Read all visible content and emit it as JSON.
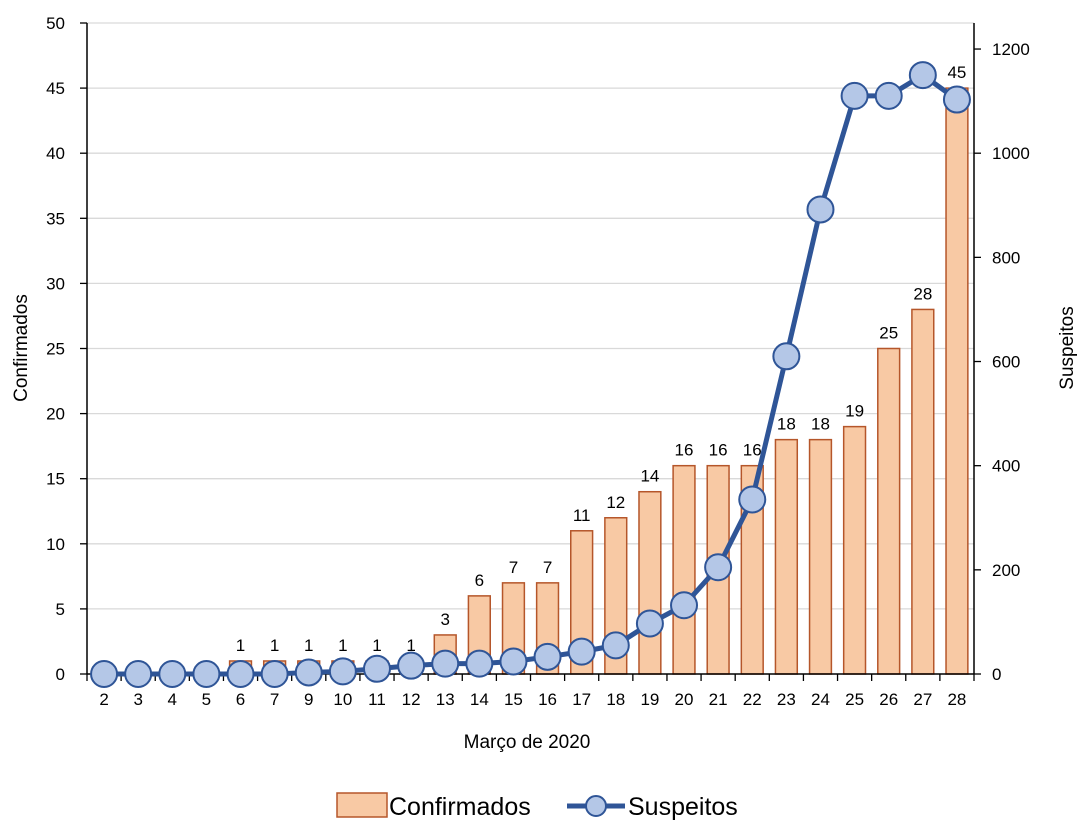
{
  "chart_data": {
    "type": "bar",
    "xlabel": "Março de 2020",
    "categories": [
      "2",
      "3",
      "4",
      "5",
      "6",
      "7",
      "9",
      "10",
      "11",
      "12",
      "13",
      "14",
      "15",
      "16",
      "17",
      "18",
      "19",
      "20",
      "21",
      "22",
      "23",
      "24",
      "25",
      "26",
      "27",
      "28"
    ],
    "y_left": {
      "label": "Confirmados",
      "lim": [
        0,
        50
      ],
      "ticks": [
        0,
        5,
        10,
        15,
        20,
        25,
        30,
        35,
        40,
        45,
        50
      ]
    },
    "y_right": {
      "label": "Suspeitos",
      "lim": [
        0,
        1250
      ],
      "ticks": [
        0,
        200,
        400,
        600,
        800,
        1000,
        1200
      ]
    },
    "series": [
      {
        "name": "Confirmados",
        "type": "bar",
        "axis": "left",
        "color": "#f8c9a4",
        "edge_color": "#b5562a",
        "values": [
          0,
          0,
          0,
          0,
          1,
          1,
          1,
          1,
          1,
          1,
          3,
          6,
          7,
          7,
          11,
          12,
          14,
          16,
          16,
          16,
          18,
          18,
          19,
          25,
          28,
          45
        ],
        "labels": [
          "",
          "",
          "",
          "",
          "1",
          "1",
          "1",
          "1",
          "1",
          "1",
          "3",
          "6",
          "7",
          "7",
          "11",
          "12",
          "14",
          "16",
          "16",
          "16",
          "18",
          "18",
          "19",
          "25",
          "28",
          "45"
        ]
      },
      {
        "name": "Suspeitos",
        "type": "line",
        "axis": "right",
        "color": "#2f5597",
        "marker_color": "#b4c7e7",
        "values": [
          0,
          0,
          0,
          0,
          0,
          0,
          3,
          5,
          10,
          16,
          20,
          20,
          24,
          33,
          43,
          55,
          97,
          132,
          205,
          335,
          610,
          892,
          1110,
          1110,
          1150,
          1103
        ]
      }
    ],
    "grid": true,
    "legend": "bottom"
  }
}
